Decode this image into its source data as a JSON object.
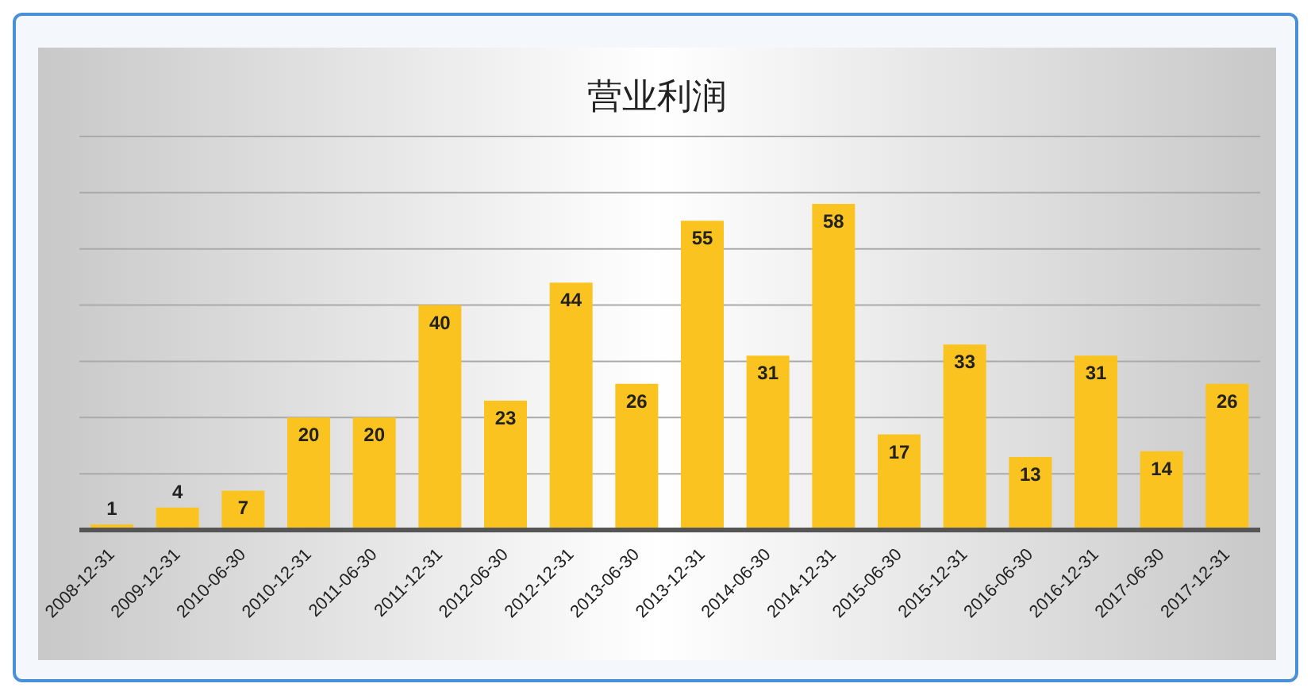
{
  "chart_data": {
    "type": "bar",
    "title": "营业利润",
    "categories": [
      "2008-12-31",
      "2009-12-31",
      "2010-06-30",
      "2010-12-31",
      "2011-06-30",
      "2011-12-31",
      "2012-06-30",
      "2012-12-31",
      "2013-06-30",
      "2013-12-31",
      "2014-06-30",
      "2014-12-31",
      "2015-06-30",
      "2015-12-31",
      "2016-06-30",
      "2016-12-31",
      "2017-06-30",
      "2017-12-31"
    ],
    "values": [
      1,
      4,
      7,
      20,
      20,
      40,
      23,
      44,
      26,
      55,
      31,
      58,
      17,
      33,
      13,
      31,
      14,
      26
    ],
    "color": "#fbc31f",
    "ylim": [
      0,
      70
    ],
    "yticks": [
      {
        "value": 0,
        "label": null
      },
      {
        "value": 10,
        "label": null
      },
      {
        "value": 20,
        "label": null
      },
      {
        "value": 30,
        "label": null
      },
      {
        "value": 40,
        "label": null
      },
      {
        "value": 50,
        "label": null
      },
      {
        "value": 60,
        "label": null
      },
      {
        "value": 70,
        "label": null
      }
    ],
    "tick_labels": "x",
    "grid": "y",
    "data_labels": true
  }
}
